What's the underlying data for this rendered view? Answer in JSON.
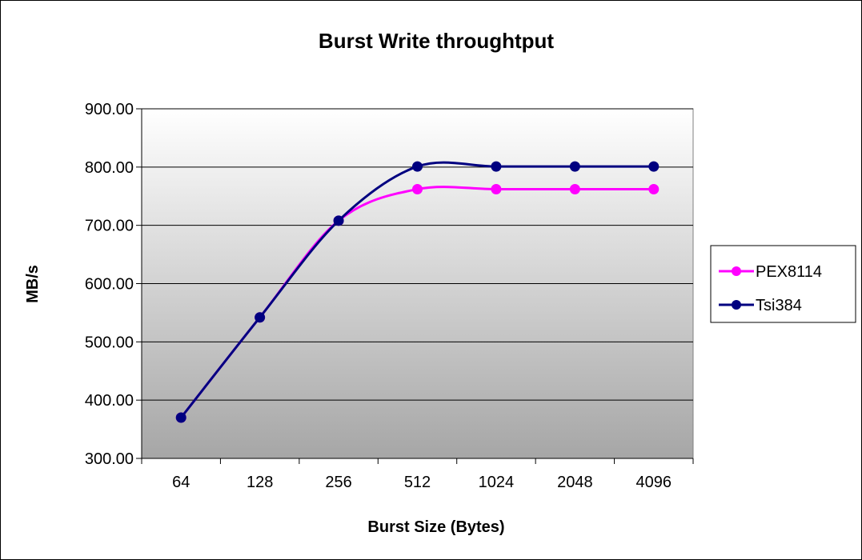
{
  "chart_data": {
    "type": "line",
    "title": "Burst Write throughtput",
    "xlabel": "Burst Size (Bytes)",
    "ylabel": "MB/s",
    "categories": [
      "64",
      "128",
      "256",
      "512",
      "1024",
      "2048",
      "4096"
    ],
    "ylim": [
      300,
      900
    ],
    "yticks": [
      "300.00",
      "400.00",
      "500.00",
      "600.00",
      "700.00",
      "800.00",
      "900.00"
    ],
    "grid": true,
    "legend_position": "right",
    "series": [
      {
        "name": "PEX8114",
        "color": "#ff00ff",
        "values": [
          370,
          542,
          708,
          762,
          762,
          762,
          762
        ]
      },
      {
        "name": "Tsi384",
        "color": "#000080",
        "values": [
          370,
          542,
          708,
          801,
          801,
          801,
          801
        ]
      }
    ]
  }
}
